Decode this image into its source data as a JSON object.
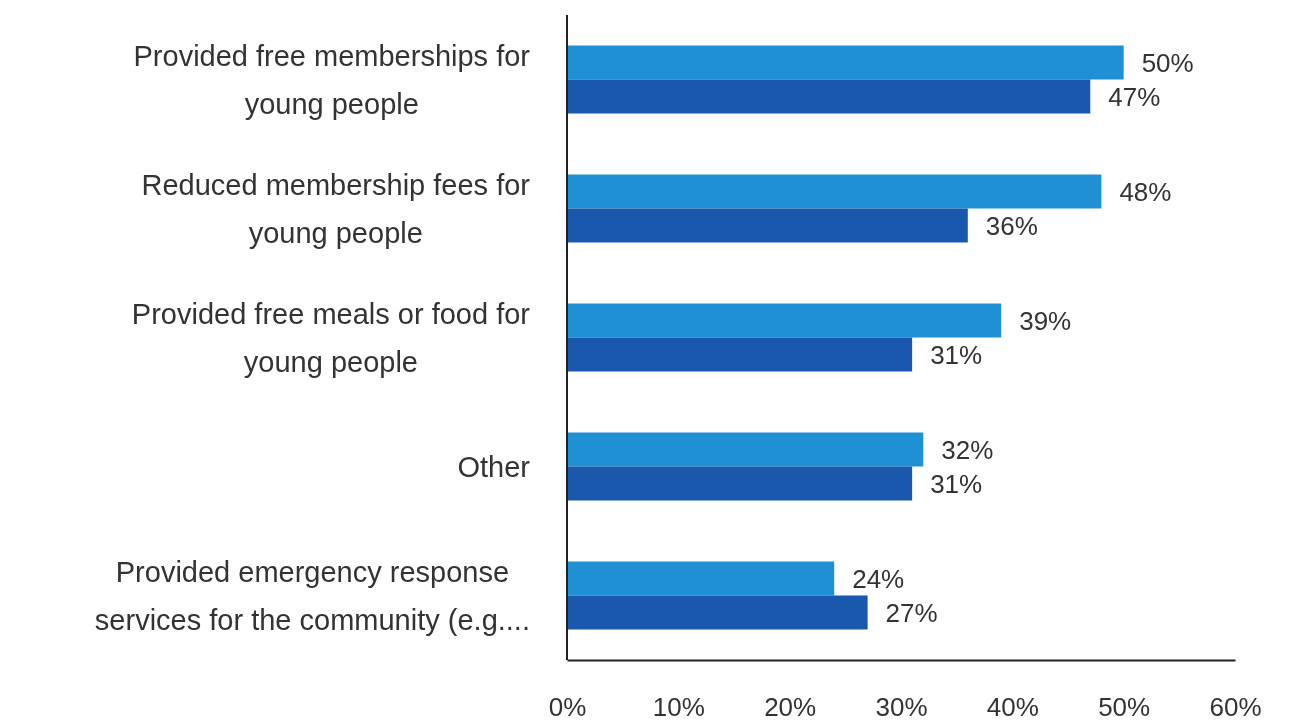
{
  "chart_data": {
    "type": "bar",
    "orientation": "horizontal",
    "categories": [
      "Provided free memberships for young people",
      "Reduced membership fees for young people",
      "Provided free meals or food for young people",
      "Other",
      "Provided emergency response services for the community (e.g...."
    ],
    "series": [
      {
        "color": "#1f90d4",
        "values": [
          50,
          48,
          39,
          32,
          24
        ],
        "value_labels": [
          "50%",
          "48%",
          "39%",
          "32%",
          "24%"
        ]
      },
      {
        "color": "#1a58ad",
        "values": [
          47,
          36,
          31,
          31,
          27
        ],
        "value_labels": [
          "47%",
          "36%",
          "31%",
          "31%",
          "27%"
        ]
      }
    ],
    "xlim": [
      0,
      60
    ],
    "xticks": [
      {
        "value": 0,
        "label": "0%"
      },
      {
        "value": 10,
        "label": "10%"
      },
      {
        "value": 20,
        "label": "20%"
      },
      {
        "value": 30,
        "label": "30%"
      },
      {
        "value": 40,
        "label": "40%"
      },
      {
        "value": 50,
        "label": "50%"
      },
      {
        "value": 60,
        "label": "60%"
      }
    ],
    "grid": false
  }
}
